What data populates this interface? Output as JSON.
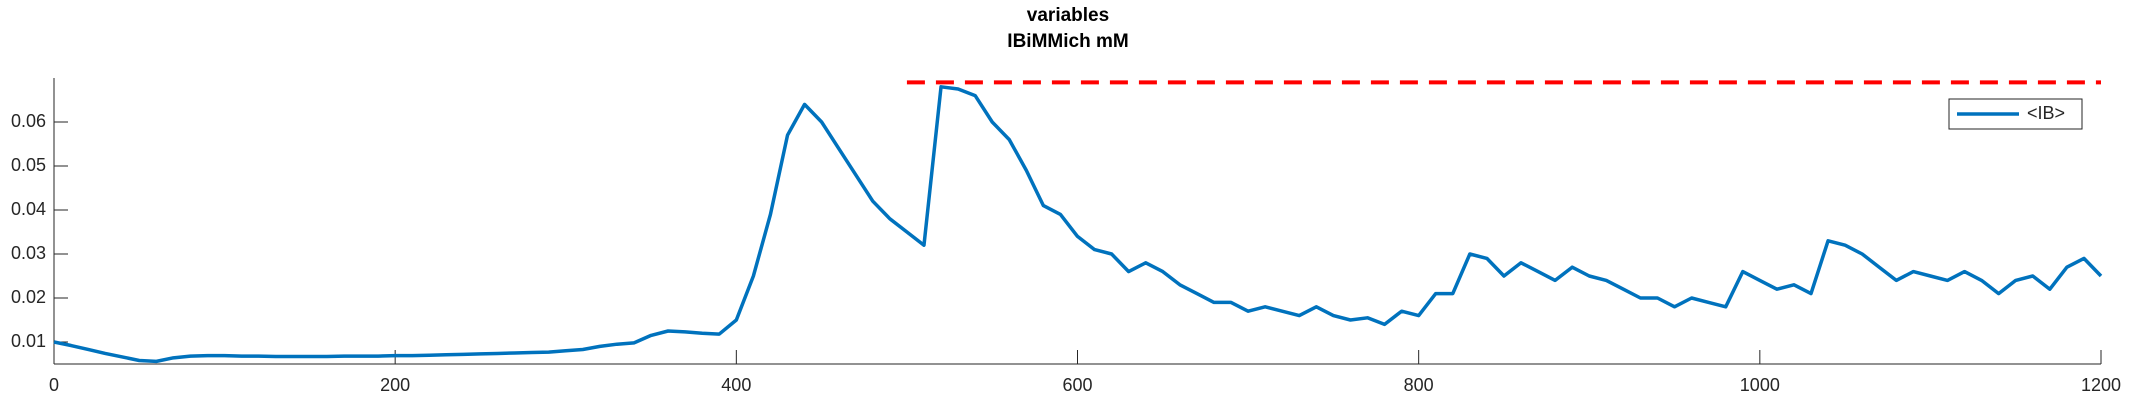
{
  "chart_data": {
    "type": "line",
    "title": [
      "variables",
      "IBiMMich mM"
    ],
    "x": [
      0,
      10,
      20,
      30,
      40,
      50,
      60,
      70,
      80,
      90,
      100,
      110,
      120,
      130,
      140,
      150,
      160,
      170,
      180,
      190,
      200,
      210,
      220,
      230,
      240,
      250,
      260,
      270,
      280,
      290,
      300,
      310,
      320,
      330,
      340,
      350,
      360,
      370,
      380,
      390,
      400,
      410,
      420,
      430,
      440,
      450,
      460,
      470,
      480,
      490,
      500,
      510,
      520,
      530,
      540,
      550,
      560,
      570,
      580,
      590,
      600,
      610,
      620,
      630,
      640,
      650,
      660,
      670,
      680,
      690,
      700,
      710,
      720,
      730,
      740,
      750,
      760,
      770,
      780,
      790,
      800,
      810,
      820,
      830,
      840,
      850,
      860,
      870,
      880,
      890,
      900,
      910,
      920,
      930,
      940,
      950,
      960,
      970,
      980,
      990,
      1000,
      1010,
      1020,
      1030,
      1040,
      1050,
      1060,
      1070,
      1080,
      1090,
      1100,
      1110,
      1120,
      1130,
      1140,
      1150,
      1160,
      1170,
      1180,
      1190,
      1200
    ],
    "series": [
      {
        "name": "<IB>",
        "color": "#0072bd",
        "values": [
          0.01,
          0.0092,
          0.0083,
          0.0074,
          0.0066,
          0.0058,
          0.0056,
          0.0064,
          0.0068,
          0.0069,
          0.0069,
          0.0068,
          0.0068,
          0.0067,
          0.0067,
          0.0067,
          0.0067,
          0.0068,
          0.0068,
          0.0068,
          0.0069,
          0.0069,
          0.007,
          0.0071,
          0.0072,
          0.0073,
          0.0074,
          0.0075,
          0.0076,
          0.0077,
          0.008,
          0.0083,
          0.009,
          0.0095,
          0.0098,
          0.0115,
          0.0125,
          0.0123,
          0.012,
          0.0118,
          0.015,
          0.025,
          0.039,
          0.057,
          0.064,
          0.06,
          0.054,
          0.048,
          0.042,
          0.038,
          0.035,
          0.032,
          0.068,
          0.0675,
          0.066,
          0.06,
          0.056,
          0.049,
          0.041,
          0.039,
          0.034,
          0.031,
          0.03,
          0.026,
          0.028,
          0.026,
          0.023,
          0.021,
          0.019,
          0.019,
          0.017,
          0.018,
          0.017,
          0.016,
          0.018,
          0.016,
          0.015,
          0.0155,
          0.014,
          0.017,
          0.016,
          0.021,
          0.021,
          0.03,
          0.029,
          0.025,
          0.028,
          0.026,
          0.024,
          0.027,
          0.025,
          0.024,
          0.022,
          0.02,
          0.02,
          0.018,
          0.02,
          0.019,
          0.018,
          0.026,
          0.024,
          0.022,
          0.023,
          0.021,
          0.033,
          0.032,
          0.03,
          0.027,
          0.024,
          0.026,
          0.025,
          0.024,
          0.026,
          0.024,
          0.021,
          0.024,
          0.025,
          0.022,
          0.027,
          0.029,
          0.025
        ]
      }
    ],
    "reference_line": {
      "x": [
        500,
        1200
      ],
      "y": 0.069,
      "color": "#ff0000",
      "style": "dashed"
    },
    "xlim": [
      0,
      1200
    ],
    "xticks": [
      0,
      200,
      400,
      600,
      800,
      1000,
      1200
    ],
    "ylim": [
      0.005,
      0.07
    ],
    "yticks": [
      0.01,
      0.02,
      0.03,
      0.04,
      0.05,
      0.06
    ],
    "grid": false,
    "legend": "top-right"
  }
}
